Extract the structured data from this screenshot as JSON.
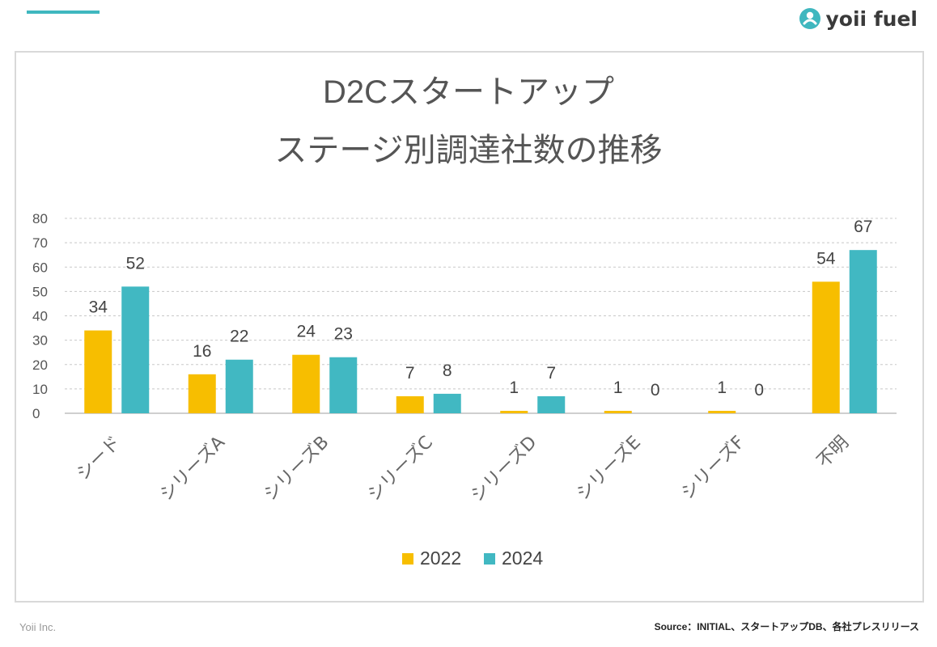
{
  "brand": {
    "name": "yoii fuel"
  },
  "footer": {
    "company": "Yoii Inc.",
    "source": "Source：INITIAL、スタートアップDB、各社プレスリリース"
  },
  "colors": {
    "accent": "#3fb7bf",
    "series_2022": "#f7be00",
    "series_2024": "#41b8c2"
  },
  "chart_data": {
    "type": "bar",
    "title": "D2Cスタートアップ",
    "subtitle": "ステージ別調達社数の推移",
    "categories": [
      "シード",
      "シリーズA",
      "シリーズB",
      "シリーズC",
      "シリーズD",
      "シリーズE",
      "シリーズF",
      "不明"
    ],
    "series": [
      {
        "name": "2022",
        "values": [
          34,
          16,
          24,
          7,
          1,
          1,
          1,
          54
        ]
      },
      {
        "name": "2024",
        "values": [
          52,
          22,
          23,
          8,
          7,
          0,
          0,
          67
        ]
      }
    ],
    "ylim": [
      0,
      80
    ],
    "yticks": [
      0,
      10,
      20,
      30,
      40,
      50,
      60,
      70,
      80
    ],
    "grid": true,
    "legend": "bottom",
    "data_labels": true
  }
}
